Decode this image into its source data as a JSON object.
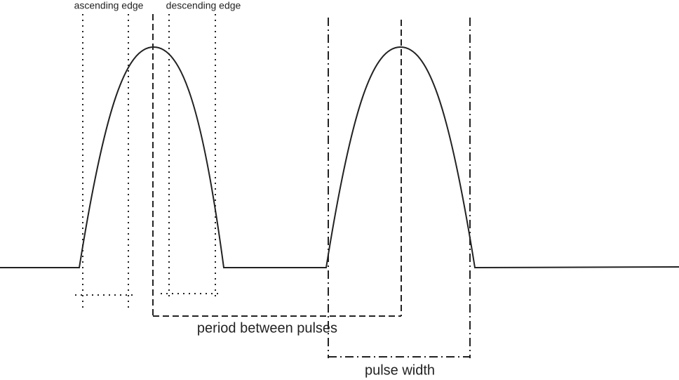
{
  "labels": {
    "ascending_edge": "ascending edge",
    "descending_edge": "descending edge",
    "period": "period between pulses",
    "pulse_width": "pulse width"
  }
}
